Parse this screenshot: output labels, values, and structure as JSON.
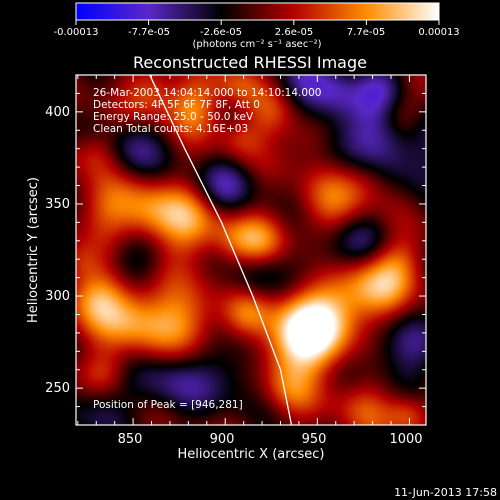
{
  "colorbar": {
    "tick_labels": [
      "-0.00013",
      "-7.7e-05",
      "-2.6e-05",
      "2.6e-05",
      "7.7e-05",
      "0.00013"
    ],
    "units_label": "(photons cm⁻² s⁻¹ asec⁻²)"
  },
  "title": "Reconstructed RHESSI Image",
  "info_lines": [
    "26-Mar-2003 14:04:14.000 to 14:10:14.000",
    "Detectors: 4F 5F 6F 7F 8F, Att 0",
    "Energy Range: 25.0 - 50.0 keV",
    "Clean     Total counts: 4.16E+03"
  ],
  "peak_label": "Position of Peak = [946,281]",
  "footer_timestamp": "11-Jun-2013 17:58",
  "colors": {
    "background": "#000000",
    "colormap": [
      "#0000ff",
      "#5a28c8",
      "#000000",
      "#b40000",
      "#ff8c00",
      "#ffffff"
    ]
  },
  "chart_data": {
    "type": "heatmap",
    "title": "Reconstructed RHESSI Image",
    "xlabel": "Heliocentric X (arcsec)",
    "ylabel": "Heliocentric Y (arcsec)",
    "xlim": [
      819,
      1009
    ],
    "ylim": [
      230,
      420
    ],
    "x_ticks": [
      850,
      900,
      950,
      1000
    ],
    "y_ticks": [
      250,
      300,
      350,
      400
    ],
    "peak": {
      "x": 946,
      "y": 281
    },
    "value_range": [
      -0.00013,
      0.00013
    ],
    "limb_curve": {
      "x": [
        859,
        878,
        898,
        915,
        930,
        936
      ],
      "y": [
        420,
        380,
        340,
        300,
        260,
        230
      ]
    },
    "sources": [
      {
        "x": 946,
        "y": 281,
        "amp": 1.0,
        "s": 14
      },
      {
        "x": 965,
        "y": 300,
        "amp": 0.55,
        "s": 15
      },
      {
        "x": 933,
        "y": 268,
        "amp": 0.45,
        "s": 14
      },
      {
        "x": 985,
        "y": 305,
        "amp": 0.5,
        "s": 12
      },
      {
        "x": 995,
        "y": 320,
        "amp": 0.35,
        "s": 10
      },
      {
        "x": 975,
        "y": 240,
        "amp": 0.35,
        "s": 12
      },
      {
        "x": 1000,
        "y": 236,
        "amp": 0.45,
        "s": 8
      },
      {
        "x": 960,
        "y": 350,
        "amp": 0.45,
        "s": 14
      },
      {
        "x": 978,
        "y": 365,
        "amp": 0.3,
        "s": 10
      },
      {
        "x": 920,
        "y": 330,
        "amp": 0.45,
        "s": 10
      },
      {
        "x": 905,
        "y": 330,
        "amp": 0.35,
        "s": 10
      },
      {
        "x": 880,
        "y": 340,
        "amp": 0.6,
        "s": 13
      },
      {
        "x": 858,
        "y": 345,
        "amp": 0.55,
        "s": 12
      },
      {
        "x": 835,
        "y": 348,
        "amp": 0.4,
        "s": 12
      },
      {
        "x": 830,
        "y": 378,
        "amp": 0.35,
        "s": 9
      },
      {
        "x": 848,
        "y": 288,
        "amp": 0.65,
        "s": 14
      },
      {
        "x": 878,
        "y": 285,
        "amp": 0.6,
        "s": 14
      },
      {
        "x": 830,
        "y": 300,
        "amp": 0.5,
        "s": 11
      },
      {
        "x": 912,
        "y": 290,
        "amp": 0.4,
        "s": 9
      },
      {
        "x": 835,
        "y": 258,
        "amp": 0.35,
        "s": 9
      },
      {
        "x": 860,
        "y": 410,
        "amp": 0.45,
        "s": 10
      },
      {
        "x": 882,
        "y": 402,
        "amp": 0.55,
        "s": 10
      },
      {
        "x": 908,
        "y": 415,
        "amp": 0.4,
        "s": 9
      },
      {
        "x": 908,
        "y": 385,
        "amp": 0.35,
        "s": 9
      },
      {
        "x": 925,
        "y": 400,
        "amp": 0.35,
        "s": 10
      },
      {
        "x": 945,
        "y": 385,
        "amp": 0.35,
        "s": 10
      },
      {
        "x": 995,
        "y": 398,
        "amp": 0.35,
        "s": 9
      },
      {
        "x": 935,
        "y": 248,
        "amp": 0.3,
        "s": 10
      },
      {
        "x": 820,
        "y": 318,
        "amp": 0.3,
        "s": 8
      },
      {
        "x": 955,
        "y": 320,
        "amp": -0.35,
        "s": 12
      },
      {
        "x": 970,
        "y": 390,
        "amp": -0.5,
        "s": 16
      },
      {
        "x": 1000,
        "y": 380,
        "amp": -0.45,
        "s": 16
      },
      {
        "x": 995,
        "y": 270,
        "amp": -0.45,
        "s": 14
      },
      {
        "x": 975,
        "y": 330,
        "amp": -0.35,
        "s": 12
      },
      {
        "x": 900,
        "y": 360,
        "amp": -0.45,
        "s": 12
      },
      {
        "x": 905,
        "y": 260,
        "amp": -0.4,
        "s": 14
      },
      {
        "x": 870,
        "y": 255,
        "amp": -0.45,
        "s": 14
      },
      {
        "x": 830,
        "y": 240,
        "amp": -0.35,
        "s": 12
      },
      {
        "x": 850,
        "y": 320,
        "amp": -0.35,
        "s": 11
      },
      {
        "x": 850,
        "y": 380,
        "amp": -0.4,
        "s": 12
      },
      {
        "x": 940,
        "y": 415,
        "amp": -0.4,
        "s": 12
      },
      {
        "x": 915,
        "y": 310,
        "amp": -0.3,
        "s": 10
      },
      {
        "x": 960,
        "y": 410,
        "amp": -0.3,
        "s": 10
      },
      {
        "x": 985,
        "y": 415,
        "amp": -0.35,
        "s": 10
      }
    ]
  }
}
